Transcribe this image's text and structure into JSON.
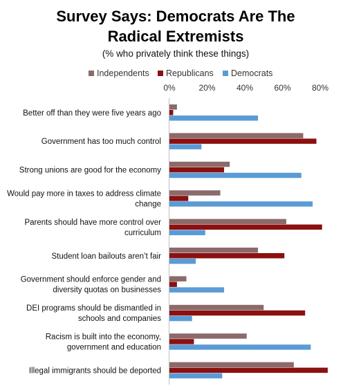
{
  "chart_data": {
    "type": "bar",
    "orientation": "horizontal",
    "title_lines": [
      "Survey Says: Democrats Are The",
      "Radical Extremists"
    ],
    "subtitle": "(% who privately think these things)",
    "x_ticks": [
      "0%",
      "20%",
      "40%",
      "60%",
      "80%"
    ],
    "xlim": [
      0,
      85
    ],
    "legend_position": "top",
    "categories": [
      [
        "Better off than they were five years ago"
      ],
      [
        "Government has too much control"
      ],
      [
        "Strong unions are good for the economy"
      ],
      [
        "Would pay more in taxes to address climate",
        "change"
      ],
      [
        "Parents should have more control over",
        "curriculum"
      ],
      [
        "Student loan bailouts aren’t fair"
      ],
      [
        "Government should enforce gender and",
        "diversity quotas on businesses"
      ],
      [
        "DEI programs should be dismantled in",
        "schools and companies"
      ],
      [
        "Racism is built into the economy,",
        "government and education"
      ],
      [
        "Illegal immigrants should be deported"
      ]
    ],
    "series": [
      {
        "name": "Independents",
        "color": "#8c6a6a",
        "values": [
          4,
          71,
          32,
          27,
          62,
          47,
          9,
          50,
          41,
          66
        ]
      },
      {
        "name": "Republicans",
        "color": "#8b1010",
        "values": [
          2,
          78,
          29,
          10,
          81,
          61,
          4,
          72,
          13,
          84
        ]
      },
      {
        "name": "Democrats",
        "color": "#5b9bd5",
        "values": [
          47,
          17,
          70,
          76,
          19,
          14,
          29,
          12,
          75,
          28
        ]
      }
    ]
  }
}
